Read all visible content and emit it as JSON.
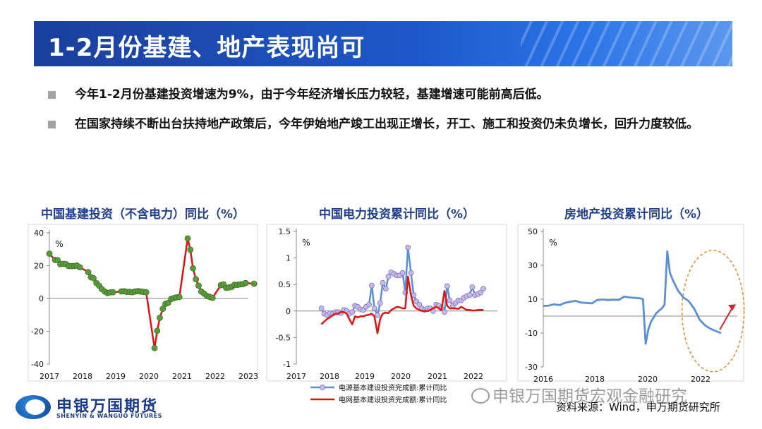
{
  "slide": {
    "title": "1-2月份基建、地产表现尚可",
    "bullets": [
      "今年1-2月份基建投资增速为9%，由于今年经济增长压力较轻，基建增速可能前高后低。",
      "在国家持续不断出台扶持地产政策后，今年伊始地产竣工出现正增长，开工、施工和投资仍未负增长，回升力度较低。"
    ],
    "source": "资料来源：Wind，申万期货研究所",
    "watermark": "申银万国期货宏观金融研究",
    "logo_cn": "申银万国期货",
    "logo_en": "SHENYIN & WANGUO FUTURES"
  },
  "colors": {
    "title_bar": "#1e58c9",
    "chart_title": "#1f3f8c",
    "red_line": "#e01414",
    "green_marker": "#5a9a3a",
    "blue_line": "#5b8fd6",
    "lavender_marker": "#c7b8e6",
    "ellipse": "#e08a2a",
    "arrow": "#e02020"
  },
  "chart_data": [
    {
      "type": "line",
      "title": "中国基建投资（不含电力）同比（%）",
      "unit": "%",
      "ylim": [
        -40,
        40
      ],
      "yticks": [
        -40,
        -20,
        0,
        20,
        40
      ],
      "xlim": [
        2017,
        2023
      ],
      "xticks": [
        "2017",
        "2018",
        "2019",
        "2020",
        "2021",
        "2022",
        "2023"
      ],
      "series": [
        {
          "x": [
            2017.0,
            2017.17,
            2017.25,
            2017.33,
            2017.42,
            2017.5,
            2017.58,
            2017.67,
            2017.75,
            2017.83,
            2017.92,
            2018.17,
            2018.25,
            2018.33,
            2018.42,
            2018.5,
            2018.58,
            2018.67,
            2018.75,
            2018.83,
            2018.92,
            2019.17,
            2019.25,
            2019.33,
            2019.42,
            2019.5,
            2019.58,
            2019.67,
            2019.75,
            2019.83,
            2019.92,
            2020.17,
            2020.25,
            2020.33,
            2020.42,
            2020.5,
            2020.58,
            2020.67,
            2020.75,
            2020.83,
            2020.92,
            2021.17,
            2021.25,
            2021.33,
            2021.42,
            2021.5,
            2021.58,
            2021.67,
            2021.75,
            2021.83,
            2021.92,
            2022.17,
            2022.25,
            2022.33,
            2022.42,
            2022.5,
            2022.58,
            2022.67,
            2022.75,
            2022.83,
            2022.92,
            2023.17
          ],
          "values": [
            27.3,
            23.5,
            23.3,
            20.9,
            21.1,
            20.9,
            19.8,
            19.8,
            19.8,
            20.1,
            19.0,
            16.1,
            13.0,
            12.4,
            9.4,
            7.8,
            5.7,
            4.2,
            3.3,
            3.7,
            3.8,
            4.3,
            4.4,
            4.0,
            4.0,
            3.8,
            4.2,
            4.5,
            4.2,
            4.0,
            3.8,
            -30.3,
            -19.7,
            -11.8,
            -6.3,
            -3.3,
            -2.7,
            -0.3,
            0.2,
            0.7,
            0.9,
            36.6,
            29.7,
            18.4,
            11.8,
            7.8,
            4.2,
            2.9,
            1.5,
            1.0,
            0.4,
            8.1,
            8.5,
            6.5,
            6.7,
            7.1,
            8.3,
            8.3,
            8.6,
            8.7,
            9.4,
            9.0
          ]
        }
      ]
    },
    {
      "type": "line",
      "title": "中国电力投资累计同比（%）",
      "unit": "%",
      "ylim": [
        -1,
        1.5
      ],
      "yticks": [
        -1,
        -0.5,
        0,
        0.5,
        1,
        1.5
      ],
      "xlim": [
        2017,
        2023
      ],
      "xticks": [
        "2017",
        "2018",
        "2019",
        "2020",
        "2021",
        "2022"
      ],
      "series": [
        {
          "name": "电源基本建设投资完成额:累计同比",
          "x": [
            2017.75,
            2017.83,
            2017.92,
            2018.0,
            2018.08,
            2018.17,
            2018.25,
            2018.33,
            2018.42,
            2018.5,
            2018.58,
            2018.67,
            2018.75,
            2018.83,
            2018.92,
            2019.0,
            2019.08,
            2019.17,
            2019.25,
            2019.33,
            2019.42,
            2019.5,
            2019.58,
            2019.67,
            2019.75,
            2019.83,
            2019.92,
            2020.0,
            2020.08,
            2020.17,
            2020.25,
            2020.33,
            2020.42,
            2020.5,
            2020.58,
            2020.67,
            2020.75,
            2020.83,
            2020.92,
            2021.0,
            2021.08,
            2021.17,
            2021.25,
            2021.33,
            2021.42,
            2021.5,
            2021.58,
            2021.67,
            2021.75,
            2021.83,
            2021.92,
            2022.0,
            2022.08,
            2022.17,
            2022.25,
            2022.33,
            2022.42,
            2022.5,
            2022.58
          ],
          "values": [
            0.05,
            -0.05,
            -0.08,
            -0.04,
            -0.05,
            -0.02,
            -0.02,
            -0.04,
            0.02,
            0.0,
            -0.05,
            -0.02,
            0.1,
            0.08,
            0.03,
            0.02,
            0.08,
            0.12,
            0.48,
            0.05,
            -0.08,
            0.15,
            0.53,
            0.42,
            0.65,
            0.73,
            0.7,
            0.67,
            0.67,
            0.72,
            0.35,
            1.2,
            0.72,
            0.3,
            0.18,
            0.12,
            0.05,
            0.02,
            0.05,
            0.05,
            0.0,
            0.12,
            0.1,
            0.05,
            -0.02,
            0.47,
            0.2,
            0.1,
            0.15,
            0.2,
            0.2,
            0.25,
            0.28,
            0.3,
            0.45,
            0.3,
            0.32,
            0.35,
            0.42
          ]
        },
        {
          "name": "电网基本建设投资完成额:累计同比",
          "x": [
            2017.75,
            2017.83,
            2017.92,
            2018.0,
            2018.08,
            2018.17,
            2018.25,
            2018.33,
            2018.42,
            2018.5,
            2018.58,
            2018.67,
            2018.75,
            2018.83,
            2018.92,
            2019.0,
            2019.08,
            2019.17,
            2019.25,
            2019.33,
            2019.42,
            2019.5,
            2019.58,
            2019.67,
            2019.75,
            2019.83,
            2019.92,
            2020.0,
            2020.08,
            2020.17,
            2020.25,
            2020.33,
            2020.42,
            2020.5,
            2020.58,
            2020.67,
            2020.75,
            2020.83,
            2020.92,
            2021.0,
            2021.08,
            2021.17,
            2021.25,
            2021.33,
            2021.42,
            2021.5,
            2021.58,
            2021.67,
            2021.75,
            2021.83,
            2021.92,
            2022.0,
            2022.08,
            2022.17,
            2022.25,
            2022.33,
            2022.42,
            2022.5,
            2022.58
          ],
          "values": [
            -0.25,
            -0.2,
            -0.15,
            -0.12,
            -0.08,
            -0.05,
            -0.05,
            -0.02,
            -0.02,
            -0.05,
            -0.15,
            -0.25,
            -0.1,
            -0.12,
            -0.1,
            -0.1,
            -0.08,
            -0.07,
            -0.05,
            -0.1,
            -0.42,
            -0.15,
            -0.05,
            -0.03,
            -0.04,
            0.02,
            0.05,
            0.08,
            0.07,
            0.05,
            0.05,
            0.65,
            0.3,
            0.1,
            0.05,
            0.02,
            0.0,
            0.0,
            0.0,
            0.02,
            0.05,
            0.08,
            0.05,
            0.02,
            0.38,
            0.1,
            0.05,
            0.05,
            0.05,
            0.04,
            0.08,
            0.05,
            0.02,
            0.02,
            0.01,
            0.01,
            0.02,
            0.02,
            0.02
          ]
        }
      ],
      "legend_position": "bottom"
    },
    {
      "type": "line",
      "title": "房地产投资累计同比（%）",
      "unit": "%",
      "ylim": [
        -30,
        50
      ],
      "yticks": [
        -30,
        -10,
        10,
        30,
        50
      ],
      "xlim": [
        2016,
        2023.2
      ],
      "xticks": [
        "2016",
        "2018",
        "2020",
        "2022"
      ],
      "series": [
        {
          "x": [
            2016.0,
            2016.2,
            2016.4,
            2016.6,
            2016.8,
            2017.0,
            2017.2,
            2017.4,
            2017.6,
            2017.8,
            2018.0,
            2018.2,
            2018.4,
            2018.6,
            2018.8,
            2019.0,
            2019.2,
            2019.4,
            2019.6,
            2019.7,
            2019.8,
            2019.9,
            2020.0,
            2020.2,
            2020.4,
            2020.5,
            2020.6,
            2020.7,
            2020.8,
            2021.0,
            2021.2,
            2021.4,
            2021.6,
            2021.8,
            2022.0,
            2022.2,
            2022.4,
            2022.6
          ],
          "values": [
            6.0,
            6.2,
            7.0,
            6.5,
            7.8,
            8.5,
            9.0,
            8.0,
            7.8,
            7.5,
            9.5,
            9.8,
            9.5,
            9.7,
            9.6,
            11.5,
            11.0,
            10.8,
            10.5,
            10.0,
            -16.3,
            -7.7,
            -3.3,
            1.9,
            4.6,
            6.8,
            38.3,
            25.6,
            21.6,
            15.0,
            11.0,
            8.8,
            4.4,
            -2.1,
            -5.4,
            -7.4,
            -8.8,
            -10.0
          ]
        }
      ],
      "annotations": [
        "dashed ellipse around 2021-2022 segment",
        "red upward arrow"
      ]
    }
  ]
}
